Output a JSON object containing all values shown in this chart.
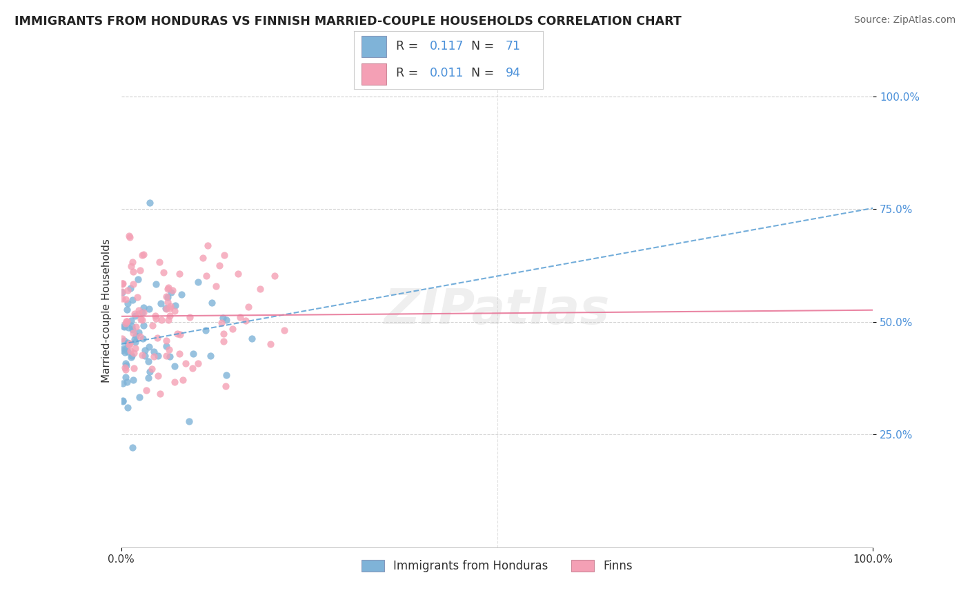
{
  "title": "IMMIGRANTS FROM HONDURAS VS FINNISH MARRIED-COUPLE HOUSEHOLDS CORRELATION CHART",
  "source": "Source: ZipAtlas.com",
  "ylabel": "Married-couple Households",
  "xlim": [
    0,
    1.0
  ],
  "ylim": [
    0.0,
    1.05
  ],
  "watermark": "ZIPatlas",
  "legend_R1": "0.117",
  "legend_N1": "71",
  "legend_R2": "0.011",
  "legend_N2": "94",
  "legend_label1": "Immigrants from Honduras",
  "legend_label2": "Finns",
  "color_blue": "#7fb3d8",
  "color_pink": "#f4a0b5",
  "color_trend_blue": "#5a9fd4",
  "color_trend_pink": "#e8799a",
  "grid_color": "#cccccc",
  "title_color": "#222222",
  "source_color": "#666666",
  "rn_color": "#4a90d9",
  "text_color": "#333333"
}
